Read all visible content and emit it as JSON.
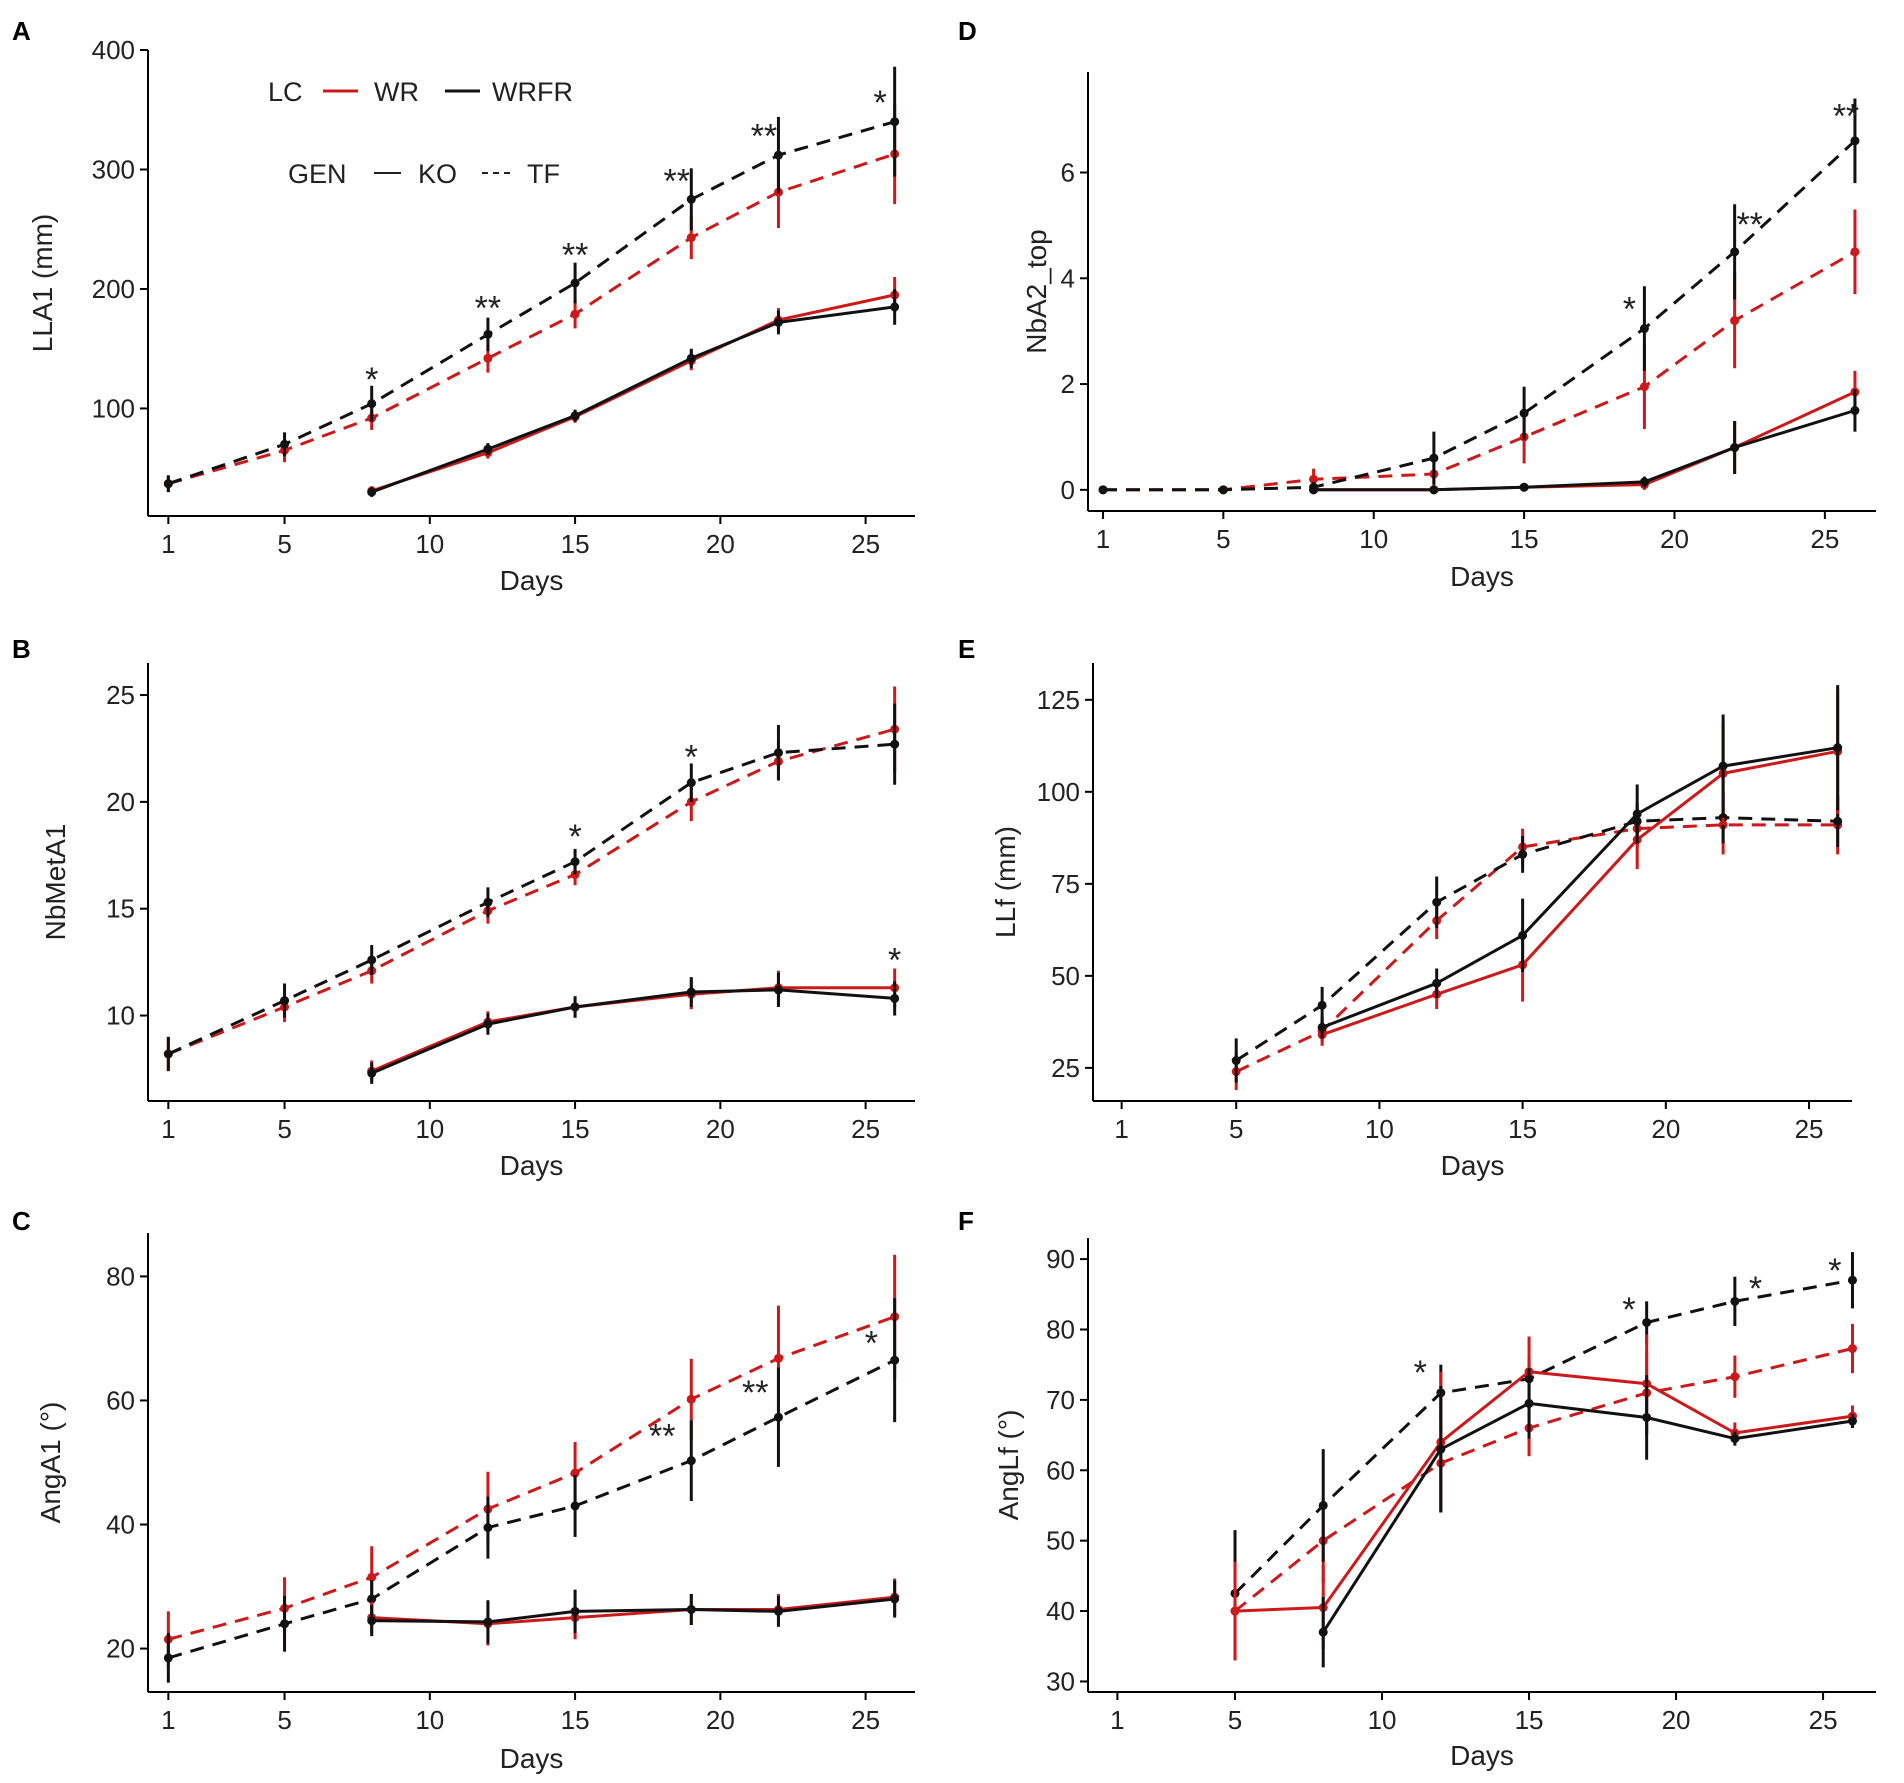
{
  "legend": {
    "lc_title": "LC",
    "lc_items": [
      {
        "label": "WR",
        "color": "#cc1a1a"
      },
      {
        "label": "WRFR",
        "color": "#111111"
      }
    ],
    "gen_title": "GEN",
    "gen_items": [
      {
        "label": "KO",
        "style": "solid"
      },
      {
        "label": "TF",
        "style": "dashed"
      }
    ]
  },
  "colors": {
    "WR": "#cc1a1a",
    "WRFR": "#111111",
    "axis": "#000000"
  },
  "chart_data": [
    {
      "panel": "A",
      "type": "line",
      "xlabel": "Days",
      "ylabel": "LLA1 (mm)",
      "xlim": [
        0.3,
        26.7
      ],
      "xticks": [
        1,
        5,
        10,
        15,
        20,
        25
      ],
      "ylim": [
        10,
        400
      ],
      "yticks": [
        100,
        200,
        300,
        400
      ],
      "series": [
        {
          "lc": "WR",
          "gen": "TF",
          "x": [
            1,
            5,
            8,
            12,
            15,
            19,
            22,
            26
          ],
          "y": [
            37,
            65,
            92,
            142,
            179,
            243,
            281,
            313
          ],
          "err": [
            7,
            10,
            10,
            12,
            12,
            18,
            30,
            42
          ]
        },
        {
          "lc": "WRFR",
          "gen": "TF",
          "x": [
            1,
            5,
            8,
            12,
            15,
            19,
            22,
            26
          ],
          "y": [
            37,
            70,
            104,
            162,
            205,
            275,
            312,
            340
          ],
          "err": [
            7,
            10,
            15,
            14,
            17,
            26,
            32,
            46
          ]
        },
        {
          "lc": "WR",
          "gen": "KO",
          "x": [
            8,
            12,
            15,
            19,
            22,
            26
          ],
          "y": [
            31,
            63,
            93,
            140,
            174,
            195
          ],
          "err": [
            4,
            5,
            5,
            8,
            10,
            15
          ]
        },
        {
          "lc": "WRFR",
          "gen": "KO",
          "x": [
            8,
            12,
            15,
            19,
            22,
            26
          ],
          "y": [
            30,
            66,
            94,
            142,
            172,
            185
          ],
          "err": [
            4,
            5,
            5,
            8,
            10,
            15
          ]
        }
      ],
      "annotations": [
        {
          "text": "*",
          "x": 8,
          "y": 128
        },
        {
          "text": "**",
          "x": 12,
          "y": 188
        },
        {
          "text": "**",
          "x": 15,
          "y": 232
        },
        {
          "text": "**",
          "x": 18.5,
          "y": 294
        },
        {
          "text": "**",
          "x": 21.5,
          "y": 332
        },
        {
          "text": "*",
          "x": 25.5,
          "y": 360
        }
      ]
    },
    {
      "panel": "B",
      "type": "line",
      "xlabel": "Days",
      "ylabel": "NbMetA1",
      "xlim": [
        0.3,
        26.7
      ],
      "xticks": [
        1,
        5,
        10,
        15,
        20,
        25
      ],
      "ylim": [
        6,
        26.5
      ],
      "yticks": [
        10,
        15,
        20,
        25
      ],
      "series": [
        {
          "lc": "WR",
          "gen": "TF",
          "x": [
            1,
            5,
            8,
            12,
            15,
            19,
            22,
            26
          ],
          "y": [
            8.2,
            10.4,
            12.1,
            14.9,
            16.6,
            20,
            21.9,
            23.4
          ],
          "err": [
            0.8,
            0.7,
            0.6,
            0.6,
            0.5,
            0.9,
            0.9,
            2.0
          ]
        },
        {
          "lc": "WRFR",
          "gen": "TF",
          "x": [
            1,
            5,
            8,
            12,
            15,
            19,
            22,
            26
          ],
          "y": [
            8.2,
            10.7,
            12.6,
            15.3,
            17.2,
            20.9,
            22.3,
            22.7
          ],
          "err": [
            0.8,
            0.8,
            0.7,
            0.7,
            0.6,
            0.9,
            1.3,
            1.9
          ]
        },
        {
          "lc": "WR",
          "gen": "KO",
          "x": [
            8,
            12,
            15,
            19,
            22,
            26
          ],
          "y": [
            7.4,
            9.7,
            10.4,
            11,
            11.3,
            11.3
          ],
          "err": [
            0.5,
            0.5,
            0.5,
            0.7,
            0.8,
            0.9
          ]
        },
        {
          "lc": "WRFR",
          "gen": "KO",
          "x": [
            8,
            12,
            15,
            19,
            22,
            26
          ],
          "y": [
            7.3,
            9.6,
            10.4,
            11.1,
            11.2,
            10.8
          ],
          "err": [
            0.5,
            0.5,
            0.5,
            0.7,
            0.8,
            0.8
          ]
        }
      ],
      "annotations": [
        {
          "text": "*",
          "x": 15,
          "y": 18.6
        },
        {
          "text": "*",
          "x": 19,
          "y": 22.3
        },
        {
          "text": "*",
          "x": 26,
          "y": 12.8
        }
      ]
    },
    {
      "panel": "C",
      "type": "line",
      "xlabel": "Days",
      "ylabel": "AngA1 (°)",
      "xlim": [
        0.3,
        26.7
      ],
      "xticks": [
        1,
        5,
        10,
        15,
        20,
        25
      ],
      "ylim": [
        13,
        87
      ],
      "yticks": [
        20,
        40,
        60,
        80
      ],
      "series": [
        {
          "lc": "WR",
          "gen": "TF",
          "x": [
            1,
            5,
            8,
            12,
            15,
            19,
            22,
            26
          ],
          "y": [
            21.5,
            26.5,
            31.5,
            42.5,
            48.3,
            60.2,
            66.8,
            73.5
          ],
          "err": [
            4.5,
            5,
            5,
            6,
            5,
            6.5,
            8.5,
            10
          ]
        },
        {
          "lc": "WRFR",
          "gen": "TF",
          "x": [
            1,
            5,
            8,
            12,
            15,
            19,
            22,
            26
          ],
          "y": [
            18.5,
            24,
            28,
            39.5,
            43,
            50.3,
            57.3,
            66.5
          ],
          "err": [
            4,
            4.5,
            3,
            5,
            5,
            6.5,
            8,
            10
          ]
        },
        {
          "lc": "WR",
          "gen": "KO",
          "x": [
            8,
            12,
            15,
            19,
            22,
            26
          ],
          "y": [
            25,
            24,
            25,
            26.3,
            26.3,
            28.3
          ],
          "err": [
            2.5,
            3.5,
            3.5,
            2.5,
            2.5,
            3
          ]
        },
        {
          "lc": "WRFR",
          "gen": "KO",
          "x": [
            8,
            12,
            15,
            19,
            22,
            26
          ],
          "y": [
            24.5,
            24.3,
            26,
            26.3,
            26,
            28
          ],
          "err": [
            2.5,
            3.5,
            3.5,
            2.5,
            2.5,
            3
          ]
        }
      ],
      "annotations": [
        {
          "text": "**",
          "x": 18,
          "y": 55
        },
        {
          "text": "**",
          "x": 21.2,
          "y": 62
        },
        {
          "text": "*",
          "x": 25.2,
          "y": 70
        }
      ]
    },
    {
      "panel": "D",
      "type": "line",
      "xlabel": "Days",
      "ylabel": "NbA2_top",
      "xlim": [
        0.5,
        26.7
      ],
      "xticks": [
        1,
        5,
        10,
        15,
        20,
        25
      ],
      "ylim": [
        -0.4,
        7.9
      ],
      "yticks": [
        0,
        2,
        4,
        6
      ],
      "series": [
        {
          "lc": "WR",
          "gen": "TF",
          "x": [
            1,
            5,
            8,
            12,
            15,
            19,
            22,
            26
          ],
          "y": [
            0,
            0,
            0.2,
            0.3,
            1,
            1.95,
            3.2,
            4.5
          ],
          "err": [
            0,
            0,
            0.2,
            0.3,
            0.5,
            0.8,
            0.9,
            0.8
          ]
        },
        {
          "lc": "WRFR",
          "gen": "TF",
          "x": [
            1,
            5,
            8,
            12,
            15,
            19,
            22,
            26
          ],
          "y": [
            0,
            0,
            0.05,
            0.6,
            1.45,
            3.05,
            4.5,
            6.6
          ],
          "err": [
            0,
            0,
            0.1,
            0.5,
            0.5,
            0.8,
            0.9,
            0.8
          ]
        },
        {
          "lc": "WR",
          "gen": "KO",
          "x": [
            8,
            12,
            15,
            19,
            22,
            26
          ],
          "y": [
            0,
            0,
            0.05,
            0.1,
            0.8,
            1.85
          ],
          "err": [
            0,
            0,
            0.05,
            0.1,
            0.5,
            0.4
          ]
        },
        {
          "lc": "WRFR",
          "gen": "KO",
          "x": [
            8,
            12,
            15,
            19,
            22,
            26
          ],
          "y": [
            0,
            0,
            0.05,
            0.15,
            0.8,
            1.5
          ],
          "err": [
            0,
            0,
            0.05,
            0.1,
            0.5,
            0.4
          ]
        }
      ],
      "annotations": [
        {
          "text": "*",
          "x": 18.5,
          "y": 3.5
        },
        {
          "text": "**",
          "x": 22.5,
          "y": 5.1
        },
        {
          "text": "**",
          "x": 25.7,
          "y": 7.15
        }
      ]
    },
    {
      "panel": "E",
      "type": "line",
      "xlabel": "Days",
      "ylabel": "LLf (mm)",
      "xlim": [
        0,
        26.5
      ],
      "xticks": [
        1,
        5,
        10,
        15,
        20,
        25
      ],
      "ylim": [
        16,
        135
      ],
      "yticks": [
        25,
        50,
        75,
        100,
        125
      ],
      "series": [
        {
          "lc": "WR",
          "gen": "TF",
          "x": [
            5,
            8,
            12,
            15,
            19,
            22,
            26
          ],
          "y": [
            24,
            35,
            65,
            85,
            90,
            91,
            91
          ],
          "err": [
            5,
            3,
            5,
            5,
            5,
            8,
            8
          ]
        },
        {
          "lc": "WRFR",
          "gen": "TF",
          "x": [
            5,
            8,
            12,
            15,
            19,
            22,
            26
          ],
          "y": [
            27,
            42,
            70,
            83,
            92,
            93,
            92
          ],
          "err": [
            6,
            5,
            7,
            5,
            5,
            7,
            7
          ]
        },
        {
          "lc": "WR",
          "gen": "KO",
          "x": [
            8,
            12,
            15,
            19,
            22,
            26
          ],
          "y": [
            34,
            45,
            53,
            87,
            105,
            111
          ],
          "err": [
            3,
            4,
            10,
            8,
            14,
            17
          ]
        },
        {
          "lc": "WRFR",
          "gen": "KO",
          "x": [
            8,
            12,
            15,
            19,
            22,
            26
          ],
          "y": [
            36,
            48,
            61,
            94,
            107,
            112
          ],
          "err": [
            3,
            4,
            10,
            8,
            14,
            17
          ]
        }
      ],
      "annotations": []
    },
    {
      "panel": "F",
      "type": "line",
      "xlabel": "Days",
      "ylabel": "AngLf (°)",
      "xlim": [
        0,
        26.8
      ],
      "xticks": [
        1,
        5,
        10,
        15,
        20,
        25
      ],
      "ylim": [
        28.5,
        93
      ],
      "yticks": [
        30,
        40,
        50,
        60,
        70,
        80,
        90
      ],
      "series": [
        {
          "lc": "WR",
          "gen": "TF",
          "x": [
            5,
            8,
            12,
            15,
            19,
            22,
            26
          ],
          "y": [
            40,
            50,
            61,
            66,
            71,
            73.3,
            77.3
          ],
          "err": [
            7,
            6,
            7,
            4,
            6,
            3,
            3.5
          ]
        },
        {
          "lc": "WRFR",
          "gen": "TF",
          "x": [
            5,
            8,
            12,
            15,
            19,
            22,
            26
          ],
          "y": [
            42.5,
            55,
            71,
            73,
            81,
            84,
            87
          ],
          "err": [
            9,
            8,
            4,
            3,
            3,
            3.5,
            4
          ]
        },
        {
          "lc": "WR",
          "gen": "KO",
          "x": [
            5,
            8,
            12,
            15,
            19,
            22,
            26
          ],
          "y": [
            40,
            40.5,
            64,
            74,
            72.3,
            65.3,
            67.7
          ],
          "err": [
            7,
            6,
            10,
            5,
            7,
            1.5,
            1.5
          ]
        },
        {
          "lc": "WRFR",
          "gen": "KO",
          "x": [
            8,
            12,
            15,
            19,
            22,
            26
          ],
          "y": [
            37,
            63,
            69.5,
            67.5,
            64.5,
            67
          ],
          "err": [
            5,
            9,
            5,
            6,
            1,
            1
          ]
        }
      ],
      "annotations": [
        {
          "text": "*",
          "x": 11.3,
          "y": 74.5
        },
        {
          "text": "*",
          "x": 18.4,
          "y": 83.5
        },
        {
          "text": "*",
          "x": 22.7,
          "y": 86.5
        },
        {
          "text": "*",
          "x": 25.4,
          "y": 89
        }
      ]
    }
  ]
}
